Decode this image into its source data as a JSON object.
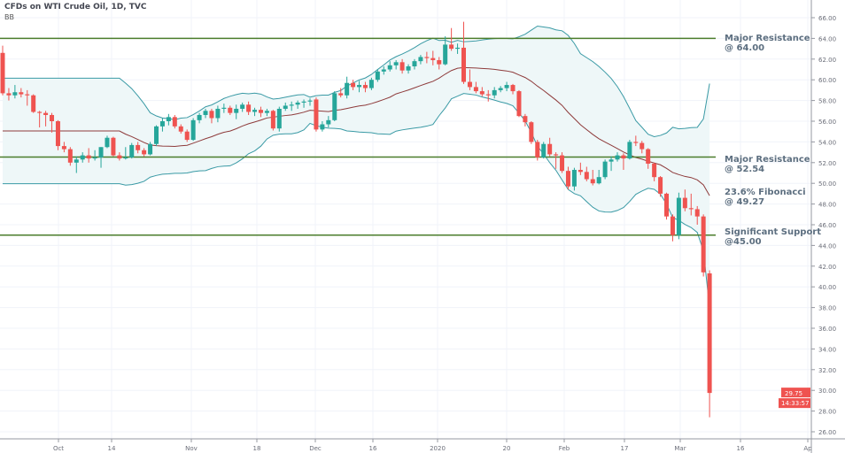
{
  "header": {
    "title": "CFDs on WTI Crude Oil, 1D, TVC",
    "indicator": "BB"
  },
  "annotations": [
    {
      "line1": "Major Resistance",
      "line2": "@ 64.00",
      "level": 64.0
    },
    {
      "line1": "Major Resistance",
      "line2": "@ 52.54",
      "level": 52.54
    },
    {
      "line1": "23.6% Fibonacci",
      "line2": "@ 49.27",
      "level": null
    },
    {
      "line1": "Significant Support",
      "line2": "@45.00",
      "level": 45.0
    }
  ],
  "price_tag": {
    "price": "29.75",
    "countdown": "14:33:57",
    "color": "#ef5350"
  },
  "chart_data": {
    "type": "candlestick",
    "title": "CFDs on WTI Crude Oil, 1D, TVC",
    "indicator": "Bollinger Bands (20, 2)",
    "ylim": [
      25,
      67
    ],
    "y_ticks": [
      "66.00",
      "64.00",
      "62.00",
      "60.00",
      "58.00",
      "56.00",
      "54.00",
      "52.00",
      "50.00",
      "48.00",
      "46.00",
      "44.00",
      "42.00",
      "40.00",
      "38.00",
      "36.00",
      "34.00",
      "32.00",
      "30.00",
      "28.00",
      "26.00"
    ],
    "x_ticks": [
      "Oct",
      "14",
      "Nov",
      "18",
      "Dec",
      "16",
      "2020",
      "20",
      "Feb",
      "17",
      "Mar",
      "16",
      "Ap"
    ],
    "horizontal_levels": [
      64.0,
      52.54,
      45.0
    ],
    "colors": {
      "up": "#26a69a",
      "down": "#ef5350",
      "band": "#3a9aa5",
      "basis": "#8e3b3b",
      "band_fill": "#eef7f8",
      "level_line": "#4b7d2c"
    },
    "grid": true,
    "ohlc": [
      [
        62.6,
        63.3,
        58.5,
        58.7
      ],
      [
        58.7,
        59.2,
        58.0,
        58.5
      ],
      [
        58.5,
        59.5,
        58.2,
        58.8
      ],
      [
        58.8,
        59.2,
        58.3,
        58.6
      ],
      [
        58.6,
        59.0,
        57.5,
        58.5
      ],
      [
        58.5,
        58.6,
        56.8,
        56.9
      ],
      [
        56.9,
        57.0,
        55.4,
        56.8
      ],
      [
        56.8,
        57.0,
        55.5,
        56.6
      ],
      [
        56.6,
        56.8,
        54.9,
        56.0
      ],
      [
        56.0,
        56.1,
        53.2,
        53.6
      ],
      [
        53.6,
        54.0,
        53.0,
        53.3
      ],
      [
        53.3,
        53.5,
        51.7,
        52.0
      ],
      [
        52.0,
        52.6,
        51.0,
        52.3
      ],
      [
        52.3,
        53.0,
        52.0,
        52.7
      ],
      [
        52.7,
        53.4,
        52.0,
        52.4
      ],
      [
        52.4,
        53.2,
        52.2,
        52.5
      ],
      [
        52.5,
        53.5,
        51.5,
        53.5
      ],
      [
        53.5,
        54.6,
        53.4,
        54.4
      ],
      [
        54.4,
        54.5,
        52.6,
        52.7
      ],
      [
        52.7,
        53.0,
        52.2,
        52.4
      ],
      [
        52.4,
        53.5,
        52.3,
        52.5
      ],
      [
        52.5,
        53.9,
        52.4,
        53.7
      ],
      [
        53.7,
        54.0,
        52.9,
        53.2
      ],
      [
        53.2,
        53.4,
        52.6,
        52.8
      ],
      [
        52.8,
        54.0,
        52.7,
        53.8
      ],
      [
        53.8,
        55.6,
        53.6,
        55.5
      ],
      [
        55.5,
        56.3,
        55.0,
        56.0
      ],
      [
        56.0,
        56.7,
        55.6,
        56.4
      ],
      [
        56.4,
        56.6,
        55.3,
        55.5
      ],
      [
        55.5,
        55.7,
        54.8,
        55.0
      ],
      [
        55.0,
        55.2,
        54.0,
        54.2
      ],
      [
        54.2,
        56.3,
        54.1,
        56.1
      ],
      [
        56.1,
        56.8,
        55.8,
        56.6
      ],
      [
        56.6,
        57.2,
        56.3,
        57.0
      ],
      [
        57.0,
        57.2,
        55.8,
        56.3
      ],
      [
        56.3,
        57.5,
        55.9,
        57.2
      ],
      [
        57.2,
        57.7,
        56.8,
        57.3
      ],
      [
        57.3,
        57.5,
        56.6,
        56.8
      ],
      [
        56.8,
        57.6,
        56.2,
        57.2
      ],
      [
        57.2,
        57.8,
        56.9,
        57.6
      ],
      [
        57.6,
        57.9,
        56.6,
        56.9
      ],
      [
        56.9,
        57.3,
        56.5,
        57.1
      ],
      [
        57.1,
        57.4,
        56.4,
        56.8
      ],
      [
        56.8,
        57.2,
        56.5,
        57.0
      ],
      [
        57.0,
        57.1,
        55.1,
        55.3
      ],
      [
        55.3,
        57.4,
        55.0,
        57.2
      ],
      [
        57.2,
        57.8,
        57.0,
        57.5
      ],
      [
        57.5,
        57.9,
        57.0,
        57.6
      ],
      [
        57.6,
        58.0,
        57.2,
        57.8
      ],
      [
        57.8,
        58.1,
        57.3,
        57.9
      ],
      [
        57.9,
        58.2,
        57.5,
        58.0
      ],
      [
        58.1,
        58.3,
        55.0,
        55.2
      ],
      [
        55.2,
        56.0,
        55.0,
        55.7
      ],
      [
        55.7,
        56.5,
        55.4,
        56.1
      ],
      [
        56.1,
        58.9,
        56.0,
        58.7
      ],
      [
        58.7,
        59.2,
        58.3,
        58.5
      ],
      [
        58.5,
        60.3,
        58.2,
        59.7
      ],
      [
        59.7,
        60.0,
        59.0,
        59.3
      ],
      [
        59.3,
        59.9,
        58.8,
        59.5
      ],
      [
        59.5,
        59.8,
        58.8,
        59.2
      ],
      [
        59.2,
        60.2,
        59.0,
        60.0
      ],
      [
        60.0,
        61.0,
        59.8,
        60.8
      ],
      [
        60.8,
        61.3,
        60.5,
        61.0
      ],
      [
        61.0,
        61.8,
        60.8,
        61.4
      ],
      [
        61.4,
        61.9,
        61.0,
        61.7
      ],
      [
        61.7,
        62.0,
        60.6,
        60.9
      ],
      [
        60.9,
        61.5,
        60.6,
        61.3
      ],
      [
        61.3,
        62.0,
        61.0,
        61.8
      ],
      [
        61.8,
        62.4,
        61.5,
        62.2
      ],
      [
        62.2,
        62.7,
        61.6,
        62.1
      ],
      [
        62.1,
        62.8,
        61.4,
        61.9
      ],
      [
        61.9,
        62.2,
        61.0,
        61.5
      ],
      [
        61.5,
        64.2,
        61.4,
        63.4
      ],
      [
        63.4,
        65.0,
        62.8,
        63.0
      ],
      [
        63.0,
        63.5,
        62.5,
        63.1
      ],
      [
        63.1,
        65.6,
        59.6,
        59.8
      ],
      [
        59.8,
        61.0,
        59.0,
        59.3
      ],
      [
        59.3,
        59.8,
        58.7,
        58.9
      ],
      [
        58.9,
        59.3,
        58.4,
        58.6
      ],
      [
        58.6,
        59.0,
        57.9,
        58.5
      ],
      [
        58.5,
        59.3,
        58.2,
        59.0
      ],
      [
        59.0,
        59.4,
        58.8,
        59.2
      ],
      [
        59.2,
        59.8,
        58.9,
        59.5
      ],
      [
        59.5,
        59.6,
        58.6,
        58.9
      ],
      [
        58.9,
        59.0,
        56.4,
        56.5
      ],
      [
        56.5,
        56.7,
        55.5,
        55.9
      ],
      [
        55.9,
        56.0,
        53.8,
        54.0
      ],
      [
        54.0,
        54.2,
        52.2,
        52.5
      ],
      [
        52.5,
        54.0,
        52.4,
        53.8
      ],
      [
        53.8,
        54.4,
        52.6,
        52.8
      ],
      [
        52.8,
        53.0,
        51.4,
        52.7
      ],
      [
        52.7,
        53.0,
        51.0,
        51.2
      ],
      [
        51.2,
        51.6,
        49.4,
        49.7
      ],
      [
        49.7,
        51.5,
        49.3,
        51.3
      ],
      [
        51.3,
        52.0,
        50.8,
        51.1
      ],
      [
        51.1,
        51.6,
        50.2,
        50.4
      ],
      [
        50.4,
        51.3,
        49.8,
        50.0
      ],
      [
        50.0,
        51.3,
        49.9,
        50.6
      ],
      [
        50.6,
        52.3,
        50.4,
        52.1
      ],
      [
        52.1,
        52.6,
        51.2,
        52.3
      ],
      [
        52.3,
        53.0,
        52.1,
        52.7
      ],
      [
        52.7,
        52.9,
        51.3,
        52.4
      ],
      [
        52.4,
        54.2,
        52.3,
        54.0
      ],
      [
        54.0,
        54.6,
        53.6,
        53.9
      ],
      [
        53.9,
        54.1,
        52.9,
        53.3
      ],
      [
        53.3,
        53.4,
        51.4,
        51.9
      ],
      [
        51.9,
        52.0,
        50.2,
        50.6
      ],
      [
        50.6,
        50.7,
        48.7,
        49.0
      ],
      [
        49.0,
        49.1,
        46.5,
        46.8
      ],
      [
        46.8,
        47.0,
        44.4,
        45.0
      ],
      [
        45.0,
        49.1,
        44.6,
        48.6
      ],
      [
        48.6,
        49.4,
        47.3,
        47.6
      ],
      [
        47.6,
        49.0,
        46.9,
        47.5
      ],
      [
        47.5,
        47.8,
        46.0,
        46.8
      ],
      [
        46.8,
        47.0,
        41.0,
        41.4
      ],
      [
        41.3,
        41.6,
        27.4,
        29.75
      ]
    ]
  }
}
